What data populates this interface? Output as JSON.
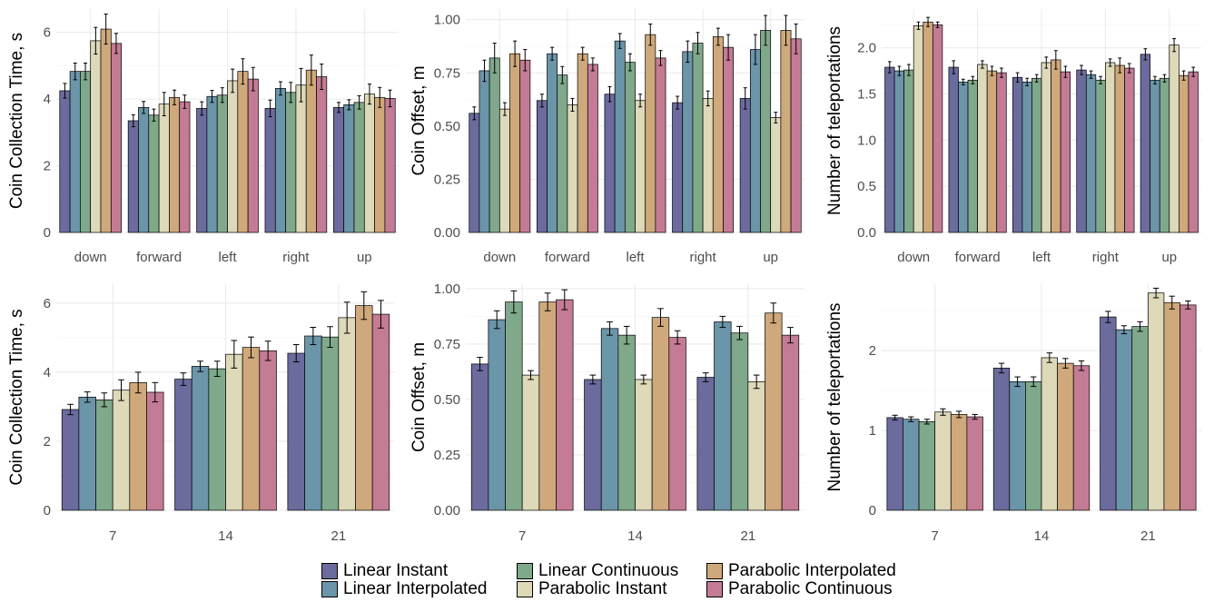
{
  "legend": {
    "items": [
      {
        "label": "Linear Instant",
        "color": "#6b6b9e"
      },
      {
        "label": "Linear Interpolated",
        "color": "#6b95a9"
      },
      {
        "label": "Linear Continuous",
        "color": "#7fa98a"
      },
      {
        "label": "Parabolic Instant",
        "color": "#ddd9b9"
      },
      {
        "label": "Parabolic Interpolated",
        "color": "#cfa97b"
      },
      {
        "label": "Parabolic Continuous",
        "color": "#c47b95"
      }
    ]
  },
  "chart_data": [
    {
      "type": "bar",
      "ylabel": "Coin Collection Time, s",
      "categories": [
        "down",
        "forward",
        "left",
        "right",
        "up"
      ],
      "ylim": [
        0,
        6.7
      ],
      "yticks": [
        0,
        2,
        4,
        6
      ],
      "ytick_labels": [
        "0",
        "2",
        "4",
        "6"
      ],
      "series": [
        {
          "name": "Linear Instant",
          "values": [
            4.25,
            3.35,
            3.72,
            3.72,
            3.75
          ],
          "errors": [
            0.22,
            0.18,
            0.2,
            0.25,
            0.15
          ]
        },
        {
          "name": "Linear Interpolated",
          "values": [
            4.83,
            3.75,
            4.08,
            4.32,
            3.83
          ],
          "errors": [
            0.25,
            0.18,
            0.18,
            0.2,
            0.15
          ]
        },
        {
          "name": "Linear Continuous",
          "values": [
            4.83,
            3.52,
            4.12,
            4.2,
            3.9
          ],
          "errors": [
            0.25,
            0.18,
            0.22,
            0.3,
            0.2
          ]
        },
        {
          "name": "Parabolic Instant",
          "values": [
            5.75,
            3.85,
            4.55,
            4.42,
            4.15
          ],
          "errors": [
            0.4,
            0.35,
            0.35,
            0.5,
            0.3
          ]
        },
        {
          "name": "Parabolic Interpolated",
          "values": [
            6.1,
            4.05,
            4.83,
            4.87,
            4.05
          ],
          "errors": [
            0.45,
            0.22,
            0.38,
            0.45,
            0.3
          ]
        },
        {
          "name": "Parabolic Continuous",
          "values": [
            5.67,
            3.92,
            4.6,
            4.67,
            4.02
          ],
          "errors": [
            0.3,
            0.2,
            0.35,
            0.38,
            0.25
          ]
        }
      ],
      "grid": true
    },
    {
      "type": "bar",
      "ylabel": "Coin Offset, m",
      "categories": [
        "down",
        "forward",
        "left",
        "right",
        "up"
      ],
      "ylim": [
        0,
        1.05
      ],
      "yticks": [
        0,
        0.25,
        0.5,
        0.75,
        1
      ],
      "ytick_labels": [
        "0.00",
        "0.25",
        "0.50",
        "0.75",
        "1.00"
      ],
      "series": [
        {
          "name": "Linear Instant",
          "values": [
            0.56,
            0.62,
            0.65,
            0.61,
            0.63
          ],
          "errors": [
            0.03,
            0.03,
            0.035,
            0.03,
            0.05
          ]
        },
        {
          "name": "Linear Interpolated",
          "values": [
            0.76,
            0.84,
            0.9,
            0.85,
            0.86
          ],
          "errors": [
            0.05,
            0.03,
            0.035,
            0.05,
            0.07
          ]
        },
        {
          "name": "Linear Continuous",
          "values": [
            0.82,
            0.74,
            0.8,
            0.89,
            0.95
          ],
          "errors": [
            0.07,
            0.04,
            0.04,
            0.05,
            0.07
          ]
        },
        {
          "name": "Parabolic Instant",
          "values": [
            0.58,
            0.6,
            0.62,
            0.63,
            0.54
          ],
          "errors": [
            0.03,
            0.03,
            0.03,
            0.035,
            0.025
          ]
        },
        {
          "name": "Parabolic Interpolated",
          "values": [
            0.84,
            0.84,
            0.93,
            0.92,
            0.95
          ],
          "errors": [
            0.06,
            0.03,
            0.05,
            0.04,
            0.07
          ]
        },
        {
          "name": "Parabolic Continuous",
          "values": [
            0.81,
            0.79,
            0.82,
            0.87,
            0.91
          ],
          "errors": [
            0.05,
            0.03,
            0.035,
            0.06,
            0.07
          ]
        }
      ],
      "grid": true
    },
    {
      "type": "bar",
      "ylabel": "Number of teleportations",
      "categories": [
        "down",
        "forward",
        "left",
        "right",
        "up"
      ],
      "ylim": [
        0,
        2.42
      ],
      "yticks": [
        0,
        0.5,
        1,
        1.5,
        2
      ],
      "ytick_labels": [
        "0.0",
        "0.5",
        "1.0",
        "1.5",
        "2.0"
      ],
      "series": [
        {
          "name": "Linear Instant",
          "values": [
            1.79,
            1.79,
            1.68,
            1.76,
            1.93
          ],
          "errors": [
            0.06,
            0.07,
            0.05,
            0.05,
            0.06
          ]
        },
        {
          "name": "Linear Interpolated",
          "values": [
            1.75,
            1.63,
            1.63,
            1.71,
            1.65
          ],
          "errors": [
            0.05,
            0.03,
            0.04,
            0.04,
            0.04
          ]
        },
        {
          "name": "Linear Continuous",
          "values": [
            1.76,
            1.65,
            1.67,
            1.65,
            1.67
          ],
          "errors": [
            0.06,
            0.04,
            0.04,
            0.04,
            0.04
          ]
        },
        {
          "name": "Parabolic Instant",
          "values": [
            2.24,
            1.82,
            1.84,
            1.84,
            2.03
          ],
          "errors": [
            0.04,
            0.04,
            0.06,
            0.04,
            0.07
          ]
        },
        {
          "name": "Parabolic Interpolated",
          "values": [
            2.28,
            1.75,
            1.87,
            1.81,
            1.7
          ],
          "errors": [
            0.05,
            0.05,
            0.1,
            0.08,
            0.05
          ]
        },
        {
          "name": "Parabolic Continuous",
          "values": [
            2.25,
            1.73,
            1.74,
            1.78,
            1.74
          ],
          "errors": [
            0.03,
            0.05,
            0.06,
            0.05,
            0.05
          ]
        }
      ],
      "grid": true
    },
    {
      "type": "bar",
      "ylabel": "Coin Collection Time, s",
      "categories": [
        "7",
        "14",
        "21"
      ],
      "ylim": [
        0,
        6.55
      ],
      "yticks": [
        0,
        2,
        4,
        6
      ],
      "ytick_labels": [
        "0",
        "2",
        "4",
        "6"
      ],
      "series": [
        {
          "name": "Linear Instant",
          "values": [
            2.92,
            3.8,
            4.55
          ],
          "errors": [
            0.15,
            0.18,
            0.25
          ]
        },
        {
          "name": "Linear Interpolated",
          "values": [
            3.28,
            4.17,
            5.05
          ],
          "errors": [
            0.15,
            0.15,
            0.25
          ]
        },
        {
          "name": "Linear Continuous",
          "values": [
            3.2,
            4.1,
            5.02
          ],
          "errors": [
            0.2,
            0.22,
            0.3
          ]
        },
        {
          "name": "Parabolic Instant",
          "values": [
            3.48,
            4.52,
            5.58
          ],
          "errors": [
            0.3,
            0.4,
            0.45
          ]
        },
        {
          "name": "Parabolic Interpolated",
          "values": [
            3.7,
            4.72,
            5.93
          ],
          "errors": [
            0.3,
            0.3,
            0.4
          ]
        },
        {
          "name": "Parabolic Continuous",
          "values": [
            3.42,
            4.62,
            5.68
          ],
          "errors": [
            0.28,
            0.28,
            0.4
          ]
        }
      ],
      "grid": true
    },
    {
      "type": "bar",
      "ylabel": "Coin Offset, m",
      "categories": [
        "7",
        "14",
        "21"
      ],
      "ylim": [
        0,
        1.02
      ],
      "yticks": [
        0,
        0.25,
        0.5,
        0.75,
        1
      ],
      "ytick_labels": [
        "0.00",
        "0.25",
        "0.50",
        "0.75",
        "1.00"
      ],
      "series": [
        {
          "name": "Linear Instant",
          "values": [
            0.66,
            0.59,
            0.6
          ],
          "errors": [
            0.03,
            0.02,
            0.02
          ]
        },
        {
          "name": "Linear Interpolated",
          "values": [
            0.86,
            0.82,
            0.85
          ],
          "errors": [
            0.04,
            0.03,
            0.025
          ]
        },
        {
          "name": "Linear Continuous",
          "values": [
            0.94,
            0.79,
            0.8
          ],
          "errors": [
            0.05,
            0.04,
            0.03
          ]
        },
        {
          "name": "Parabolic Instant",
          "values": [
            0.61,
            0.59,
            0.58
          ],
          "errors": [
            0.02,
            0.02,
            0.03
          ]
        },
        {
          "name": "Parabolic Interpolated",
          "values": [
            0.94,
            0.87,
            0.89
          ],
          "errors": [
            0.04,
            0.04,
            0.045
          ]
        },
        {
          "name": "Parabolic Continuous",
          "values": [
            0.95,
            0.78,
            0.79
          ],
          "errors": [
            0.045,
            0.03,
            0.035
          ]
        }
      ],
      "grid": true
    },
    {
      "type": "bar",
      "ylabel": "Number of teleportations",
      "categories": [
        "7",
        "14",
        "21"
      ],
      "ylim": [
        0,
        2.83
      ],
      "yticks": [
        0,
        1,
        2
      ],
      "ytick_labels": [
        "0",
        "1",
        "2"
      ],
      "series": [
        {
          "name": "Linear Instant",
          "values": [
            1.16,
            1.78,
            2.42
          ],
          "errors": [
            0.03,
            0.06,
            0.07
          ]
        },
        {
          "name": "Linear Interpolated",
          "values": [
            1.14,
            1.61,
            2.26
          ],
          "errors": [
            0.03,
            0.06,
            0.05
          ]
        },
        {
          "name": "Linear Continuous",
          "values": [
            1.11,
            1.61,
            2.3
          ],
          "errors": [
            0.03,
            0.06,
            0.06
          ]
        },
        {
          "name": "Parabolic Instant",
          "values": [
            1.23,
            1.91,
            2.72
          ],
          "errors": [
            0.04,
            0.06,
            0.06
          ]
        },
        {
          "name": "Parabolic Interpolated",
          "values": [
            1.2,
            1.84,
            2.6
          ],
          "errors": [
            0.04,
            0.06,
            0.08
          ]
        },
        {
          "name": "Parabolic Continuous",
          "values": [
            1.17,
            1.81,
            2.57
          ],
          "errors": [
            0.03,
            0.06,
            0.05
          ]
        }
      ],
      "grid": true
    }
  ]
}
